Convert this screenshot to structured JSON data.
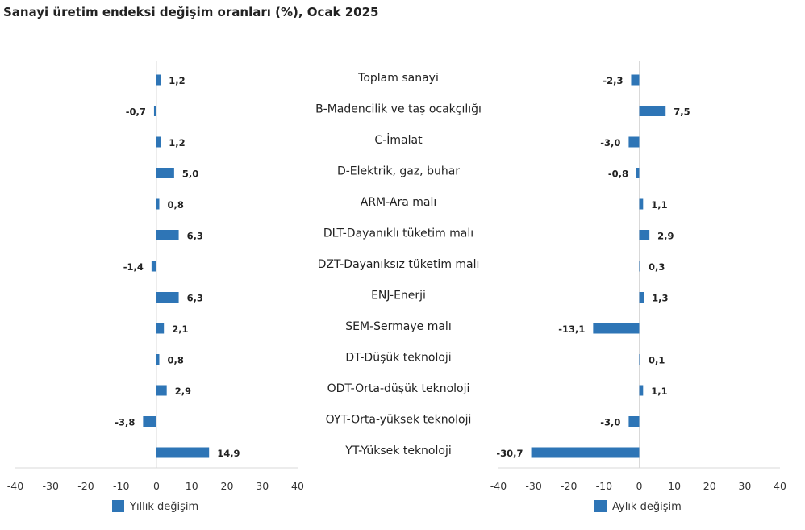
{
  "chart_data": {
    "type": "bar",
    "orientation": "horizontal",
    "title": "Sanayi üretim endeksi değişim oranları (%), Ocak 2025",
    "categories": [
      "Toplam sanayi",
      "B-Madencilik ve taş ocakçılığı",
      "C-İmalat",
      "D-Elektrik, gaz, buhar",
      "ARM-Ara malı",
      "DLT-Dayanıklı tüketim malı",
      "DZT-Dayanıksız tüketim malı",
      "ENJ-Enerji",
      "SEM-Sermaye malı",
      "DT-Düşük teknoloji",
      "ODT-Orta-düşük teknoloji",
      "OYT-Orta-yüksek teknoloji",
      "YT-Yüksek teknoloji"
    ],
    "series": [
      {
        "name": "Yıllık değişim",
        "values": [
          1.2,
          -0.7,
          1.2,
          5.0,
          0.8,
          6.3,
          -1.4,
          6.3,
          2.1,
          0.8,
          2.9,
          -3.8,
          14.9
        ],
        "labels": [
          "1,2",
          "-0,7",
          "1,2",
          "5,0",
          "0,8",
          "6,3",
          "-1,4",
          "6,3",
          "2,1",
          "0,8",
          "2,9",
          "-3,8",
          "14,9"
        ]
      },
      {
        "name": "Aylık değişim",
        "values": [
          -2.3,
          7.5,
          -3.0,
          -0.8,
          1.1,
          2.9,
          0.3,
          1.3,
          -13.1,
          0.1,
          1.1,
          -3.0,
          -30.7
        ],
        "labels": [
          "-2,3",
          "7,5",
          "-3,0",
          "-0,8",
          "1,1",
          "2,9",
          "0,3",
          "1,3",
          "-13,1",
          "0,1",
          "1,1",
          "-3,0",
          "-30,7"
        ]
      }
    ],
    "xlim": [
      -40,
      40
    ],
    "xticks": [
      -40,
      -30,
      -20,
      -10,
      0,
      10,
      20,
      30,
      40
    ],
    "grid": false,
    "legend_position": "bottom",
    "bar_color": "#2e75b6"
  }
}
